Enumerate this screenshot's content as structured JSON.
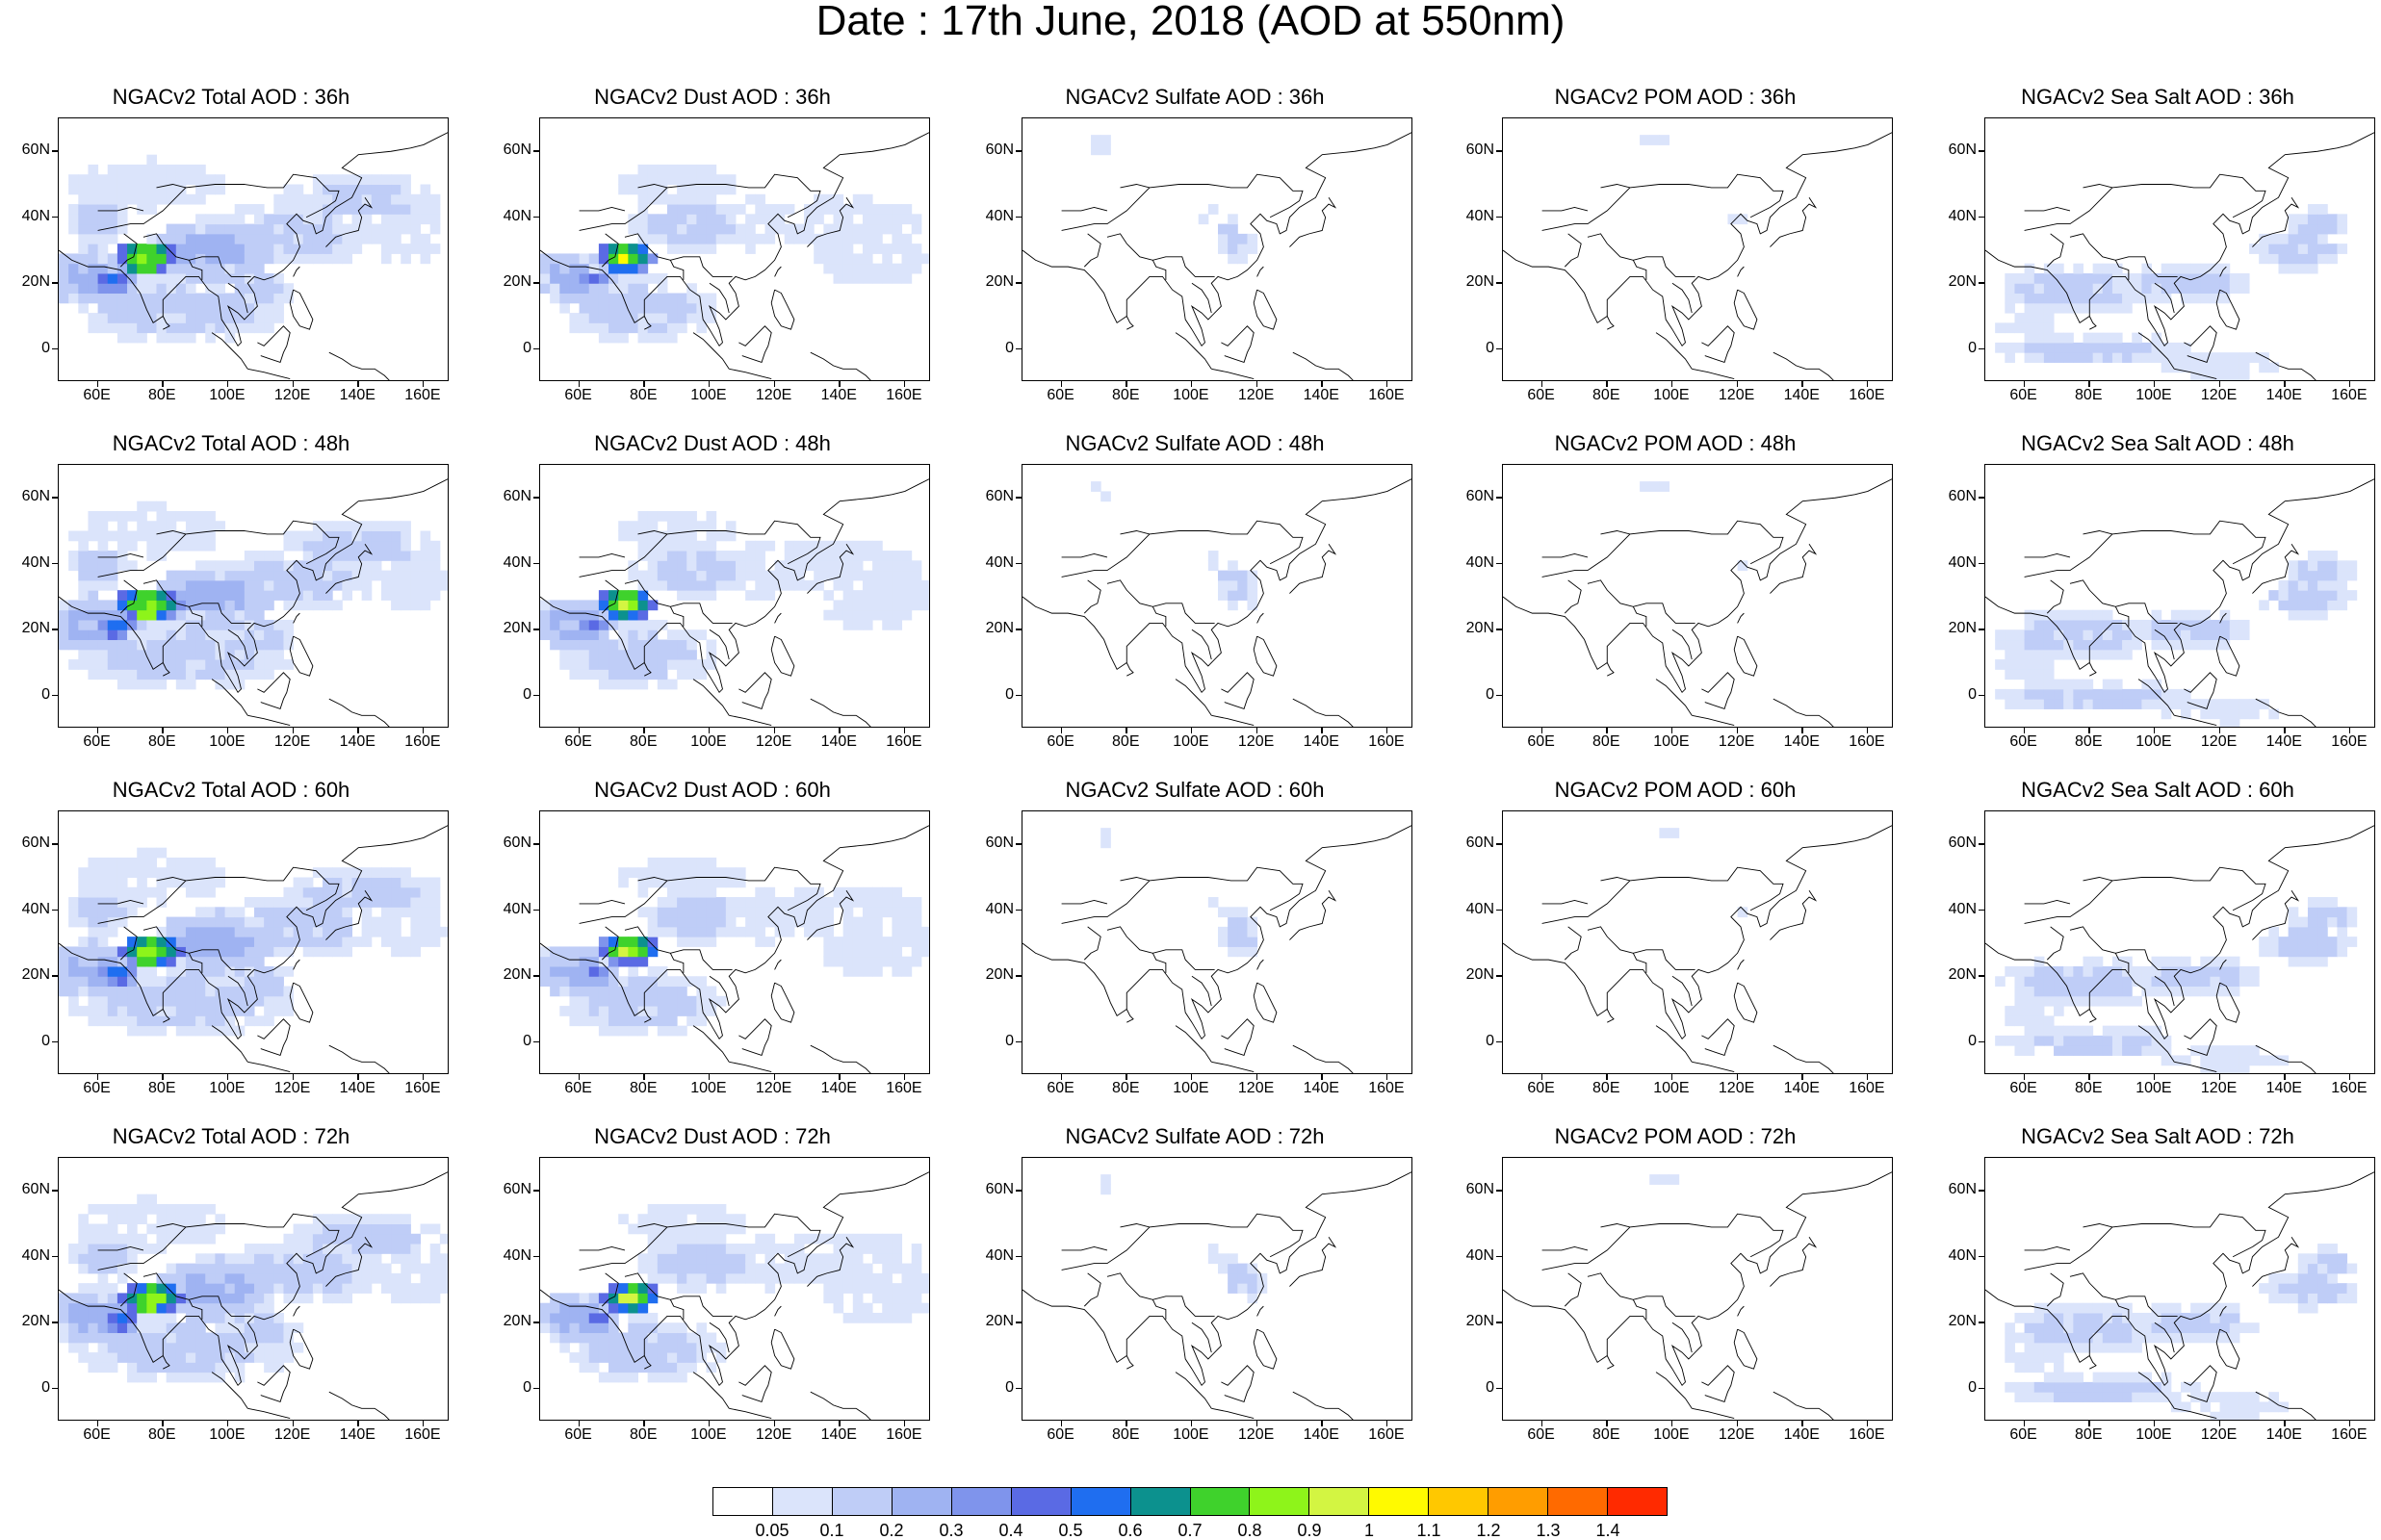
{
  "title": "Date : 17th June, 2018 (AOD at 550nm)",
  "axes": {
    "x_ticks": [
      "60E",
      "80E",
      "100E",
      "120E",
      "140E",
      "160E"
    ],
    "y_ticks": [
      "60N",
      "40N",
      "20N",
      "0"
    ],
    "lon_range": [
      48,
      168
    ],
    "lat_range": [
      -10,
      70
    ]
  },
  "colorbar": {
    "labels": [
      "0.05",
      "0.1",
      "0.2",
      "0.3",
      "0.4",
      "0.5",
      "0.6",
      "0.7",
      "0.8",
      "0.9",
      "1",
      "1.1",
      "1.2",
      "1.3",
      "1.4"
    ],
    "colors": [
      "#ffffff",
      "#dbe4fb",
      "#bfcdf7",
      "#9fb3f2",
      "#7f94ec",
      "#5a6ae4",
      "#1f6ef0",
      "#0c918e",
      "#3fd22c",
      "#8ef41a",
      "#d3f542",
      "#fffa00",
      "#ffc800",
      "#ff9d00",
      "#ff6a00",
      "#ff2a00"
    ]
  },
  "panels": [
    {
      "title": "NGACv2 Total AOD : 36h",
      "species": "total",
      "hour": "36h"
    },
    {
      "title": "NGACv2 Dust AOD : 36h",
      "species": "dust",
      "hour": "36h"
    },
    {
      "title": "NGACv2 Sulfate AOD : 36h",
      "species": "sulfate",
      "hour": "36h"
    },
    {
      "title": "NGACv2 POM AOD : 36h",
      "species": "pom",
      "hour": "36h"
    },
    {
      "title": "NGACv2 Sea Salt AOD : 36h",
      "species": "seasalt",
      "hour": "36h"
    },
    {
      "title": "NGACv2 Total AOD : 48h",
      "species": "total",
      "hour": "48h"
    },
    {
      "title": "NGACv2 Dust AOD : 48h",
      "species": "dust",
      "hour": "48h"
    },
    {
      "title": "NGACv2 Sulfate AOD : 48h",
      "species": "sulfate",
      "hour": "48h"
    },
    {
      "title": "NGACv2 POM AOD : 48h",
      "species": "pom",
      "hour": "48h"
    },
    {
      "title": "NGACv2 Sea Salt AOD : 48h",
      "species": "seasalt",
      "hour": "48h"
    },
    {
      "title": "NGACv2 Total AOD : 60h",
      "species": "total",
      "hour": "60h"
    },
    {
      "title": "NGACv2 Dust AOD : 60h",
      "species": "dust",
      "hour": "60h"
    },
    {
      "title": "NGACv2 Sulfate AOD : 60h",
      "species": "sulfate",
      "hour": "60h"
    },
    {
      "title": "NGACv2 POM AOD : 60h",
      "species": "pom",
      "hour": "60h"
    },
    {
      "title": "NGACv2 Sea Salt AOD : 60h",
      "species": "seasalt",
      "hour": "60h"
    },
    {
      "title": "NGACv2 Total AOD : 72h",
      "species": "total",
      "hour": "72h"
    },
    {
      "title": "NGACv2 Dust AOD : 72h",
      "species": "dust",
      "hour": "72h"
    },
    {
      "title": "NGACv2 Sulfate AOD : 72h",
      "species": "sulfate",
      "hour": "72h"
    },
    {
      "title": "NGACv2 POM AOD : 72h",
      "species": "pom",
      "hour": "72h"
    },
    {
      "title": "NGACv2 Sea Salt  AOD : 72h",
      "species": "seasalt",
      "hour": "72h"
    }
  ]
}
